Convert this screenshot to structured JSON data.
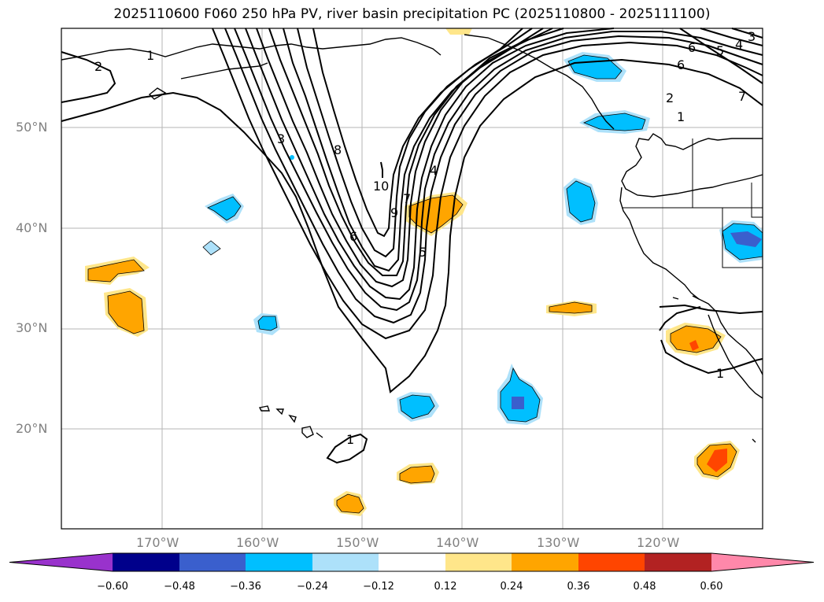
{
  "title": "2025110600 F060 250 hPa PV, river basin precipitation PC (2025110800 - 2025111100)",
  "lat_labels": [
    "50°N",
    "40°N",
    "30°N",
    "20°N"
  ],
  "lon_labels": [
    "170°W",
    "160°W",
    "150°W",
    "140°W",
    "130°W",
    "120°W"
  ],
  "contour_labels": [
    "2",
    "1",
    "3",
    "8",
    "10",
    "9",
    "7",
    "4",
    "5",
    "6",
    "6",
    "5",
    "4",
    "3",
    "6",
    "2",
    "1",
    "7",
    "1",
    "1"
  ],
  "colorbar": {
    "tick_labels": [
      "−0.60",
      "−0.48",
      "−0.36",
      "−0.24",
      "−0.12",
      "0.12",
      "0.24",
      "0.36",
      "0.48",
      "0.60"
    ],
    "colors": [
      "#9932CC",
      "#00008B",
      "#3A5FCD",
      "#00BFFF",
      "#ADE1FA",
      "#FFFFFF",
      "#FFE68A",
      "#FFA500",
      "#FF4500",
      "#B22222",
      "#FF88AA"
    ]
  }
}
